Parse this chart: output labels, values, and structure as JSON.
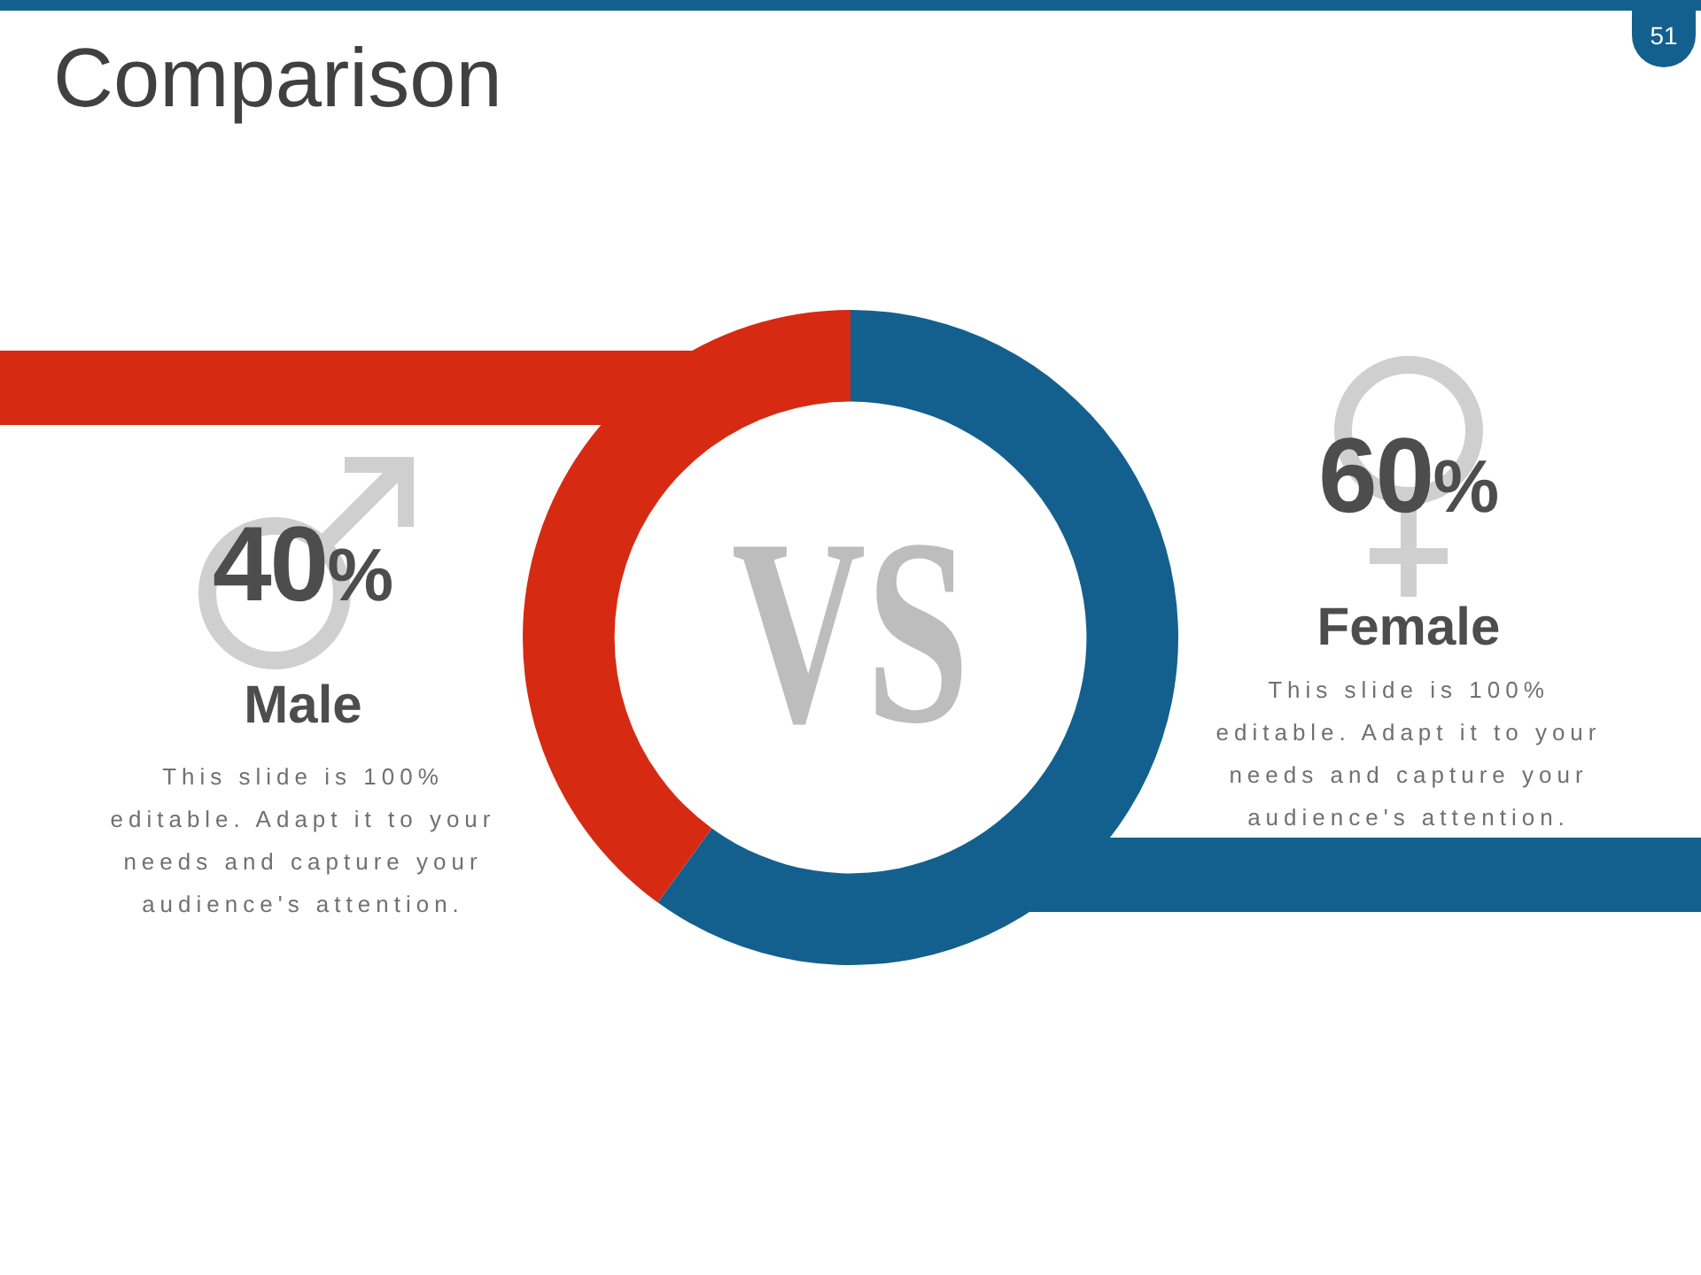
{
  "chart_data": {
    "type": "donut",
    "title": "Comparison",
    "categories": [
      "Female",
      "Male"
    ],
    "values": [
      60,
      40
    ],
    "colors": [
      "#13608e",
      "#d62b12"
    ],
    "value_labels": [
      "60%",
      "40%"
    ],
    "annotations": [
      "VS",
      "This slide is 100% editable. Adapt it to your needs and capture your audience's attention.",
      "This slide is 100% editable. Adapt it to your needs and capture your audience's attention.",
      "51"
    ]
  }
}
